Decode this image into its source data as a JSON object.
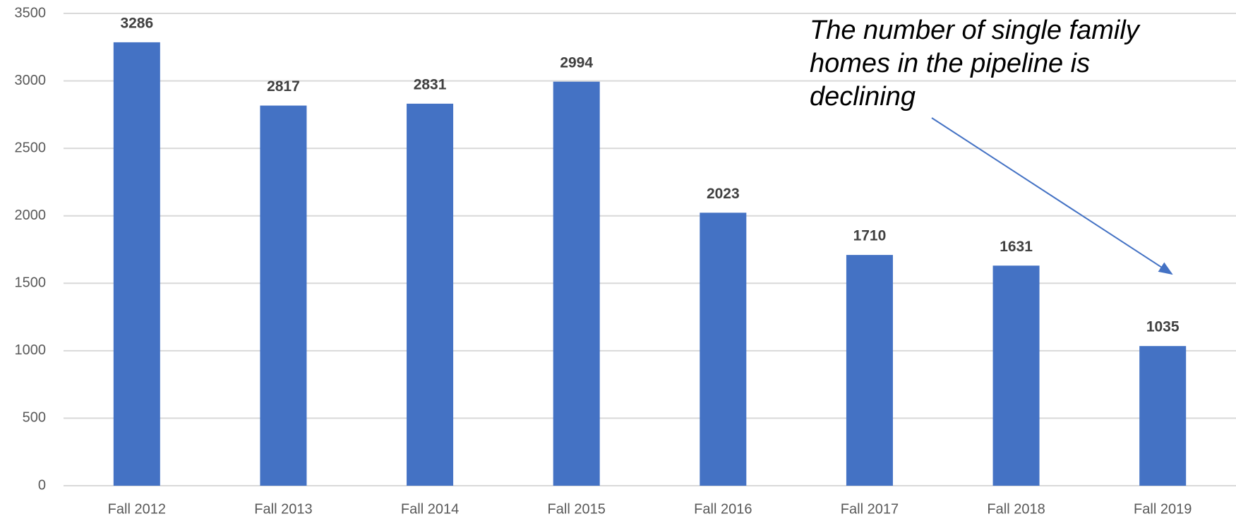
{
  "chart_data": {
    "type": "bar",
    "categories": [
      "Fall 2012",
      "Fall 2013",
      "Fall 2014",
      "Fall 2015",
      "Fall 2016",
      "Fall 2017",
      "Fall 2018",
      "Fall 2019"
    ],
    "values": [
      3286,
      2817,
      2831,
      2994,
      2023,
      1710,
      1631,
      1035
    ],
    "color": "#4472c4",
    "ylim": [
      0,
      3500
    ],
    "yticks": [
      0,
      500,
      1000,
      1500,
      2000,
      2500,
      3000,
      3500
    ],
    "grid": true,
    "annotation": "The number of single family homes in the pipeline is declining"
  }
}
